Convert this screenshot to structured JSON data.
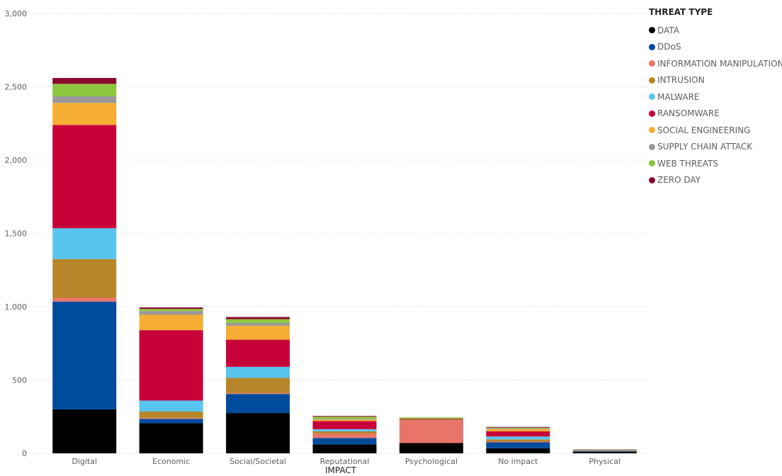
{
  "chart_data": {
    "type": "bar",
    "stacked": true,
    "xlabel": "IMPACT",
    "ylabel": "",
    "ylim": [
      0,
      3000
    ],
    "yticks": [
      0,
      500,
      1000,
      1500,
      2000,
      2500,
      3000
    ],
    "ytick_labels": [
      "0",
      "500",
      "1,000",
      "1,500",
      "2,000",
      "2,500",
      "3,000"
    ],
    "grid": true,
    "legend_title": "THREAT TYPE",
    "legend_position": "top-right",
    "categories": [
      "Digital",
      "Economic",
      "Social/Societal",
      "Reputational",
      "Psychological",
      "No impact",
      "Physical"
    ],
    "series": [
      {
        "name": "DATA",
        "color": "#000000",
        "values": [
          300,
          205,
          275,
          60,
          70,
          35,
          10
        ]
      },
      {
        "name": "DDoS",
        "color": "#004b9b",
        "values": [
          735,
          30,
          130,
          45,
          0,
          40,
          5
        ]
      },
      {
        "name": "INFORMATION MANIPULATION",
        "color": "#e9746a",
        "values": [
          25,
          5,
          5,
          30,
          155,
          5,
          0
        ]
      },
      {
        "name": "INTRUSION",
        "color": "#b7862a",
        "values": [
          265,
          45,
          105,
          15,
          5,
          15,
          5
        ]
      },
      {
        "name": "MALWARE",
        "color": "#57c5f0",
        "values": [
          210,
          75,
          75,
          15,
          0,
          20,
          3
        ]
      },
      {
        "name": "RANSOMWARE",
        "color": "#c8003a",
        "values": [
          705,
          480,
          185,
          55,
          5,
          35,
          3
        ]
      },
      {
        "name": "SOCIAL ENGINEERING",
        "color": "#f6ad33",
        "values": [
          150,
          105,
          95,
          10,
          0,
          15,
          0
        ]
      },
      {
        "name": "SUPPLY CHAIN ATTACK",
        "color": "#989898",
        "values": [
          45,
          25,
          20,
          5,
          0,
          5,
          0
        ]
      },
      {
        "name": "WEB THREATS",
        "color": "#8cc63e",
        "values": [
          85,
          15,
          25,
          15,
          10,
          5,
          2
        ]
      },
      {
        "name": "ZERO DAY",
        "color": "#8a0a2e",
        "values": [
          40,
          10,
          15,
          5,
          0,
          5,
          0
        ]
      }
    ]
  }
}
